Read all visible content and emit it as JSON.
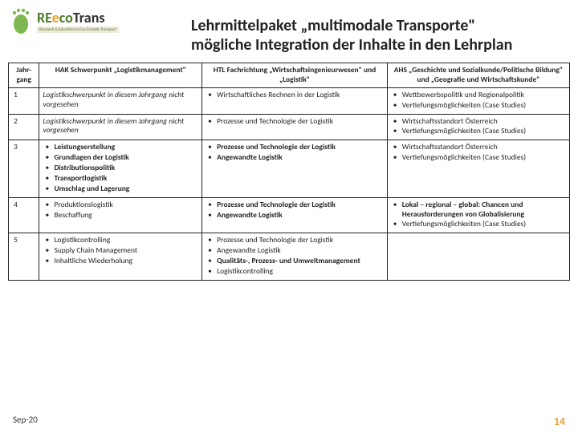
{
  "logo": {
    "re": "RE",
    "e": "e",
    "co": "co",
    "trans": "Trans",
    "tagline": "Research & Education in Eco-Friendly Transport"
  },
  "title": {
    "line1": "Lehrmittelpaket „multimodale Transporte\"",
    "line2": "mögliche Integration der Inhalte in den Lehrplan"
  },
  "headers": {
    "col1": "Jahr-gang",
    "col2": "HAK Schwerpunkt „Logistikmanagement\"",
    "col3": "HTL Fachrichtung „Wirtschaftsingenieurwesen\" und „Logistik\"",
    "col4": "AHS „Geschichte und Sozialkunde/Politische Bildung\" und „Geografie und Wirtschaftskunde\""
  },
  "rows": [
    {
      "year": "1",
      "hak_plain_italic": "Logistikschwerpunkt in diesem Jahrgang nicht vorgesehen",
      "htl": [
        "Wirtschaftliches Rechnen in der Logistik"
      ],
      "ahs": [
        "Wettbewerbspolitik und Regionalpolitik",
        "Vertiefungsmöglichkeiten (Case Studies)"
      ]
    },
    {
      "year": "2",
      "hak_plain_italic": "Logistikschwerpunkt in diesem Jahrgang nicht vorgesehen",
      "htl": [
        "Prozesse und Technologie der Logistik"
      ],
      "ahs": [
        "Wirtschaftsstandort Österreich",
        "Vertiefungsmöglichkeiten (Case Studies)"
      ]
    },
    {
      "year": "3",
      "hak_list_bold": [
        "Leistungserstellung",
        "Grundlagen der Logistik",
        "Distributionspolitik",
        "Transportlogistik",
        "Umschlag und Lagerung"
      ],
      "htl_bold": [
        "Prozesse und Technologie der Logistik",
        "Angewandte Logistik"
      ],
      "ahs": [
        "Wirtschaftsstandort Österreich",
        "Vertiefungsmöglichkeiten (Case Studies)"
      ]
    },
    {
      "year": "4",
      "hak_list": [
        "Produktionslogistik",
        "Beschaffung"
      ],
      "htl_bold": [
        "Prozesse und Technologie der Logistik",
        "Angewandte Logistik"
      ],
      "ahs_mixed": [
        {
          "text": "Lokal – regional – global: Chancen und Herausforderungen von Globalisierung",
          "bold": true
        },
        {
          "text": "Vertiefungsmöglichkeiten (Case Studies)",
          "bold": false
        }
      ]
    },
    {
      "year": "5",
      "hak_list": [
        "Logistikcontrolling",
        "Supply Chain Management",
        "Inhaltliche Wiederholung"
      ],
      "htl_mixed": [
        {
          "text": "Prozesse und Technologie der Logistik",
          "bold": false
        },
        {
          "text": "Angewandte Logistik",
          "bold": false
        },
        {
          "text": "Qualitäts-, Prozess- und Umweltmanagement",
          "bold": true
        },
        {
          "text": "Logistikcontrolling",
          "bold": false
        }
      ],
      "ahs_empty": true
    }
  ],
  "footer": {
    "date": "Sep-20",
    "page": "14"
  }
}
